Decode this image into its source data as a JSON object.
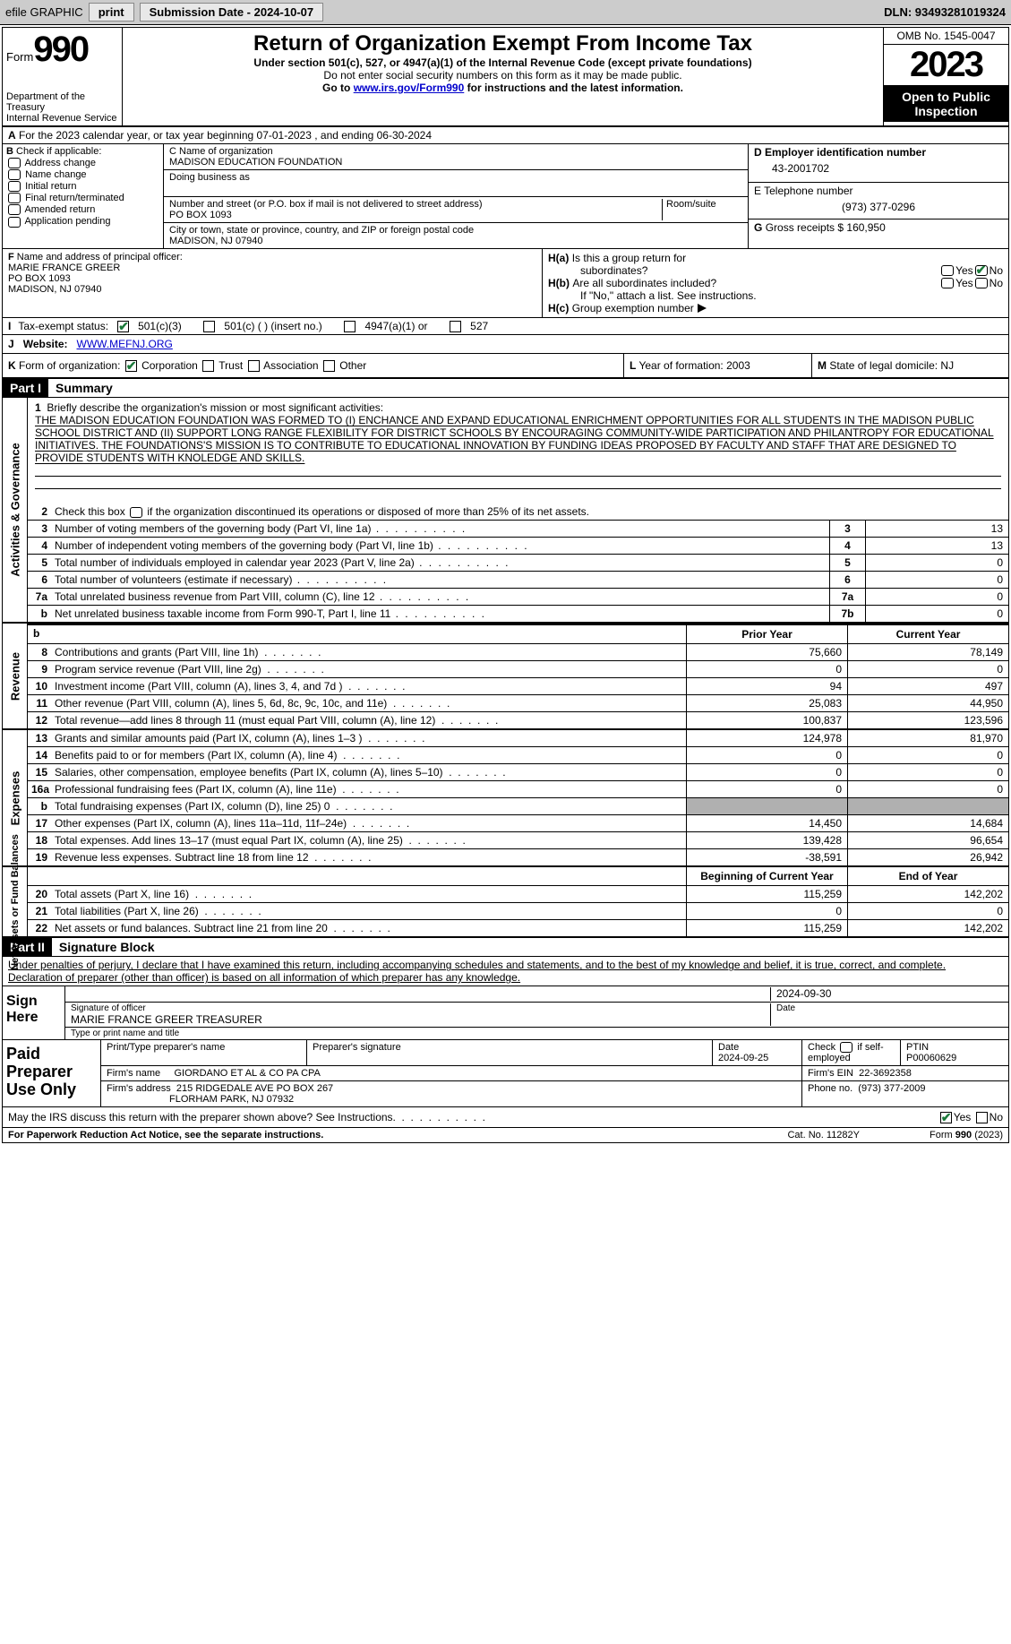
{
  "top": {
    "efile": "efile GRAPHIC",
    "print": "print",
    "sub_label": "Submission Date - 2024-10-07",
    "dln": "DLN: 93493281019324"
  },
  "header": {
    "form_word": "Form",
    "form_num": "990",
    "dept": "Department of the Treasury",
    "irs": "Internal Revenue Service",
    "title": "Return of Organization Exempt From Income Tax",
    "sub": "Under section 501(c), 527, or 4947(a)(1) of the Internal Revenue Code (except private foundations)",
    "note1": "Do not enter social security numbers on this form as it may be made public.",
    "note2_pre": "Go to ",
    "note2_link": "www.irs.gov/Form990",
    "note2_post": " for instructions and the latest information.",
    "omb": "OMB No. 1545-0047",
    "year": "2023",
    "open": "Open to Public Inspection"
  },
  "lineA": "For the 2023 calendar year, or tax year beginning 07-01-2023    , and ending 06-30-2024",
  "B": {
    "label": "Check if applicable:",
    "opts": [
      "Address change",
      "Name change",
      "Initial return",
      "Final return/terminated",
      "Amended return",
      "Application pending"
    ],
    "lead": "B"
  },
  "C": {
    "name_lbl": "C Name of organization",
    "name": "MADISON EDUCATION FOUNDATION",
    "dba_lbl": "Doing business as",
    "dba": "",
    "addr_lbl": "Number and street (or P.O. box if mail is not delivered to street address)",
    "room_lbl": "Room/suite",
    "addr": "PO BOX 1093",
    "city_lbl": "City or town, state or province, country, and ZIP or foreign postal code",
    "city": "MADISON, NJ  07940"
  },
  "D": {
    "lbl": "D Employer identification number",
    "val": "43-2001702"
  },
  "E": {
    "lbl": "E Telephone number",
    "val": "(973) 377-0296"
  },
  "G": {
    "lbl": "G",
    "txt": "Gross receipts $",
    "val": "160,950"
  },
  "F": {
    "lbl": "F",
    "txt": "Name and address of principal officer:",
    "name": "MARIE FRANCE GREER",
    "addr1": "PO BOX 1093",
    "addr2": "MADISON, NJ  07940"
  },
  "H": {
    "a_lbl": "H(a)",
    "a_txt": "Is this a group return for",
    "a_txt2": "subordinates?",
    "a_yes": "Yes",
    "a_no": "No",
    "b_lbl": "H(b)",
    "b_txt": "Are all subordinates included?",
    "b_yes": "Yes",
    "b_no": "No",
    "b_note": "If \"No,\" attach a list. See instructions.",
    "c_lbl": "H(c)",
    "c_txt": "Group exemption number"
  },
  "I": {
    "lbl": "I",
    "txt": "Tax-exempt status:",
    "o1": "501(c)(3)",
    "o2": "501(c) (  ) (insert no.)",
    "o3": "4947(a)(1) or",
    "o4": "527"
  },
  "J": {
    "lbl": "J",
    "txt": "Website:",
    "val": "WWW.MEFNJ.ORG"
  },
  "K": {
    "lbl": "K",
    "txt": "Form of organization:",
    "o1": "Corporation",
    "o2": "Trust",
    "o3": "Association",
    "o4": "Other"
  },
  "L": {
    "lbl": "L",
    "txt": "Year of formation:",
    "val": "2003"
  },
  "M": {
    "lbl": "M",
    "txt": "State of legal domicile:",
    "val": "NJ"
  },
  "part1": {
    "hdr": "Part I",
    "title": "Summary"
  },
  "summary": {
    "l1_lbl": "1",
    "l1_txt": "Briefly describe the organization's mission or most significant activities:",
    "mission": "THE MADISON EDUCATION FOUNDATION WAS FORMED TO (I) ENCHANCE AND EXPAND EDUCATIONAL ENRICHMENT OPPORTUNITIES FOR ALL STUDENTS IN THE MADISON PUBLIC SCHOOL DISTRICT AND (II) SUPPORT LONG RANGE FLEXIBILITY FOR DISTRICT SCHOOLS BY ENCOURAGING COMMUNITY-WIDE PARTICIPATION AND PHILANTROPY FOR EDUCATIONAL INITIATIVES. THE FOUNDATIONS'S MISSION IS TO CONTRIBUTE TO EDUCATIONAL INNOVATION BY FUNDING IDEAS PROPOSED BY FACULTY AND STAFF THAT ARE DESIGNED TO PROVIDE STUDENTS WITH KNOLEDGE AND SKILLS.",
    "l2_lbl": "2",
    "l2_txt": "Check this box         if the organization discontinued its operations or disposed of more than 25% of its net assets.",
    "rows": [
      {
        "n": "3",
        "d": "Number of voting members of the governing body (Part VI, line 1a)",
        "box": "3",
        "v": "13"
      },
      {
        "n": "4",
        "d": "Number of independent voting members of the governing body (Part VI, line 1b)",
        "box": "4",
        "v": "13"
      },
      {
        "n": "5",
        "d": "Total number of individuals employed in calendar year 2023 (Part V, line 2a)",
        "box": "5",
        "v": "0"
      },
      {
        "n": "6",
        "d": "Total number of volunteers (estimate if necessary)",
        "box": "6",
        "v": "0"
      },
      {
        "n": "7a",
        "d": "Total unrelated business revenue from Part VIII, column (C), line 12",
        "box": "7a",
        "v": "0"
      },
      {
        "n": "b",
        "d": "Net unrelated business taxable income from Form 990-T, Part I, line 11",
        "box": "7b",
        "v": "0"
      }
    ]
  },
  "fin": {
    "hdr_prior": "Prior Year",
    "hdr_curr": "Current Year",
    "rev": [
      {
        "n": "8",
        "d": "Contributions and grants (Part VIII, line 1h)",
        "p": "75,660",
        "c": "78,149"
      },
      {
        "n": "9",
        "d": "Program service revenue (Part VIII, line 2g)",
        "p": "0",
        "c": "0"
      },
      {
        "n": "10",
        "d": "Investment income (Part VIII, column (A), lines 3, 4, and 7d )",
        "p": "94",
        "c": "497"
      },
      {
        "n": "11",
        "d": "Other revenue (Part VIII, column (A), lines 5, 6d, 8c, 9c, 10c, and 11e)",
        "p": "25,083",
        "c": "44,950"
      },
      {
        "n": "12",
        "d": "Total revenue—add lines 8 through 11 (must equal Part VIII, column (A), line 12)",
        "p": "100,837",
        "c": "123,596"
      }
    ],
    "exp": [
      {
        "n": "13",
        "d": "Grants and similar amounts paid (Part IX, column (A), lines 1–3 )",
        "p": "124,978",
        "c": "81,970"
      },
      {
        "n": "14",
        "d": "Benefits paid to or for members (Part IX, column (A), line 4)",
        "p": "0",
        "c": "0"
      },
      {
        "n": "15",
        "d": "Salaries, other compensation, employee benefits (Part IX, column (A), lines 5–10)",
        "p": "0",
        "c": "0"
      },
      {
        "n": "16a",
        "d": "Professional fundraising fees (Part IX, column (A), line 11e)",
        "p": "0",
        "c": "0"
      },
      {
        "n": "b",
        "d": "Total fundraising expenses (Part IX, column (D), line 25) 0",
        "p": "",
        "c": "",
        "shade": true,
        "noP": true
      },
      {
        "n": "17",
        "d": "Other expenses (Part IX, column (A), lines 11a–11d, 11f–24e)",
        "p": "14,450",
        "c": "14,684"
      },
      {
        "n": "18",
        "d": "Total expenses. Add lines 13–17 (must equal Part IX, column (A), line 25)",
        "p": "139,428",
        "c": "96,654"
      },
      {
        "n": "19",
        "d": "Revenue less expenses. Subtract line 18 from line 12",
        "p": "-38,591",
        "c": "26,942"
      }
    ],
    "hdr_beg": "Beginning of Current Year",
    "hdr_end": "End of Year",
    "net": [
      {
        "n": "20",
        "d": "Total assets (Part X, line 16)",
        "p": "115,259",
        "c": "142,202"
      },
      {
        "n": "21",
        "d": "Total liabilities (Part X, line 26)",
        "p": "0",
        "c": "0"
      },
      {
        "n": "22",
        "d": "Net assets or fund balances. Subtract line 21 from line 20",
        "p": "115,259",
        "c": "142,202"
      }
    ]
  },
  "side": {
    "act": "Activities & Governance",
    "rev": "Revenue",
    "exp": "Expenses",
    "net": "Net Assets or Fund Balances"
  },
  "part2": {
    "hdr": "Part II",
    "title": "Signature Block",
    "decl": "Under penalties of perjury, I declare that I have examined this return, including accompanying schedules and statements, and to the best of my knowledge and belief, it is true, correct, and complete. Declaration of preparer (other than officer) is based on all information of which preparer has any knowledge."
  },
  "sign": {
    "here": "Sign Here",
    "sig_lbl": "Signature of officer",
    "date_lbl": "Date",
    "date": "2024-09-30",
    "name": "MARIE FRANCE GREER  TREASURER",
    "name_lbl": "Type or print name and title"
  },
  "prep": {
    "label": "Paid Preparer Use Only",
    "r1_c1": "Print/Type preparer's name",
    "r1_c2": "Preparer's signature",
    "r1_c3_lbl": "Date",
    "r1_c3": "2024-09-25",
    "r1_c4_lbl": "Check",
    "r1_c4_txt": "if self-employed",
    "r1_c5_lbl": "PTIN",
    "r1_c5": "P00060629",
    "r2_lbl": "Firm's name",
    "r2_val": "GIORDANO ET AL & CO PA CPA",
    "r2_ein_lbl": "Firm's EIN",
    "r2_ein": "22-3692358",
    "r3_lbl": "Firm's address",
    "r3_val": "215 RIDGEDALE AVE PO BOX 267",
    "r3_city": "FLORHAM PARK, NJ  07932",
    "r3_ph_lbl": "Phone no.",
    "r3_ph": "(973) 377-2009"
  },
  "discuss": {
    "txt": "May the IRS discuss this return with the preparer shown above? See Instructions.",
    "yes": "Yes",
    "no": "No"
  },
  "footer": {
    "l": "For Paperwork Reduction Act Notice, see the separate instructions.",
    "m": "Cat. No. 11282Y",
    "r": "Form 990 (2023)"
  }
}
